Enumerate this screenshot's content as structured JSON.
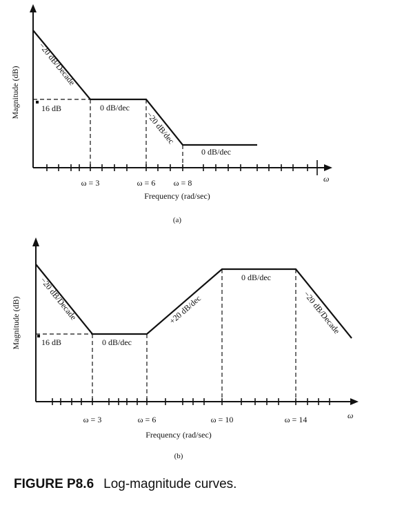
{
  "figure": {
    "label": "FIGURE P8.6",
    "title": "Log-magnitude curves."
  },
  "panel_a": {
    "sublabel": "(a)",
    "ylabel": "Magnitude (dB)",
    "xlabel": "Frequency (rad/sec)",
    "omega_symbol": "ω",
    "ticks": [
      "ω = 3",
      "ω = 6",
      "ω = 8"
    ],
    "level_label": "16 dB",
    "slopes": [
      "−20 dB/Decade",
      "0 dB/dec",
      "−20 dB/dec",
      "0 dB/dec"
    ]
  },
  "panel_b": {
    "sublabel": "(b)",
    "ylabel": "Magnitude (dB)",
    "xlabel": "Frequency (rad/sec)",
    "omega_symbol": "ω",
    "ticks": [
      "ω = 3",
      "ω = 6",
      "ω = 10",
      "ω = 14"
    ],
    "level_label": "16 dB",
    "slopes": [
      "−20 dB/Decade",
      "0 dB/dec",
      "+20 dB/dec",
      "0 dB/dec",
      "−20 dB/Decade"
    ]
  }
}
